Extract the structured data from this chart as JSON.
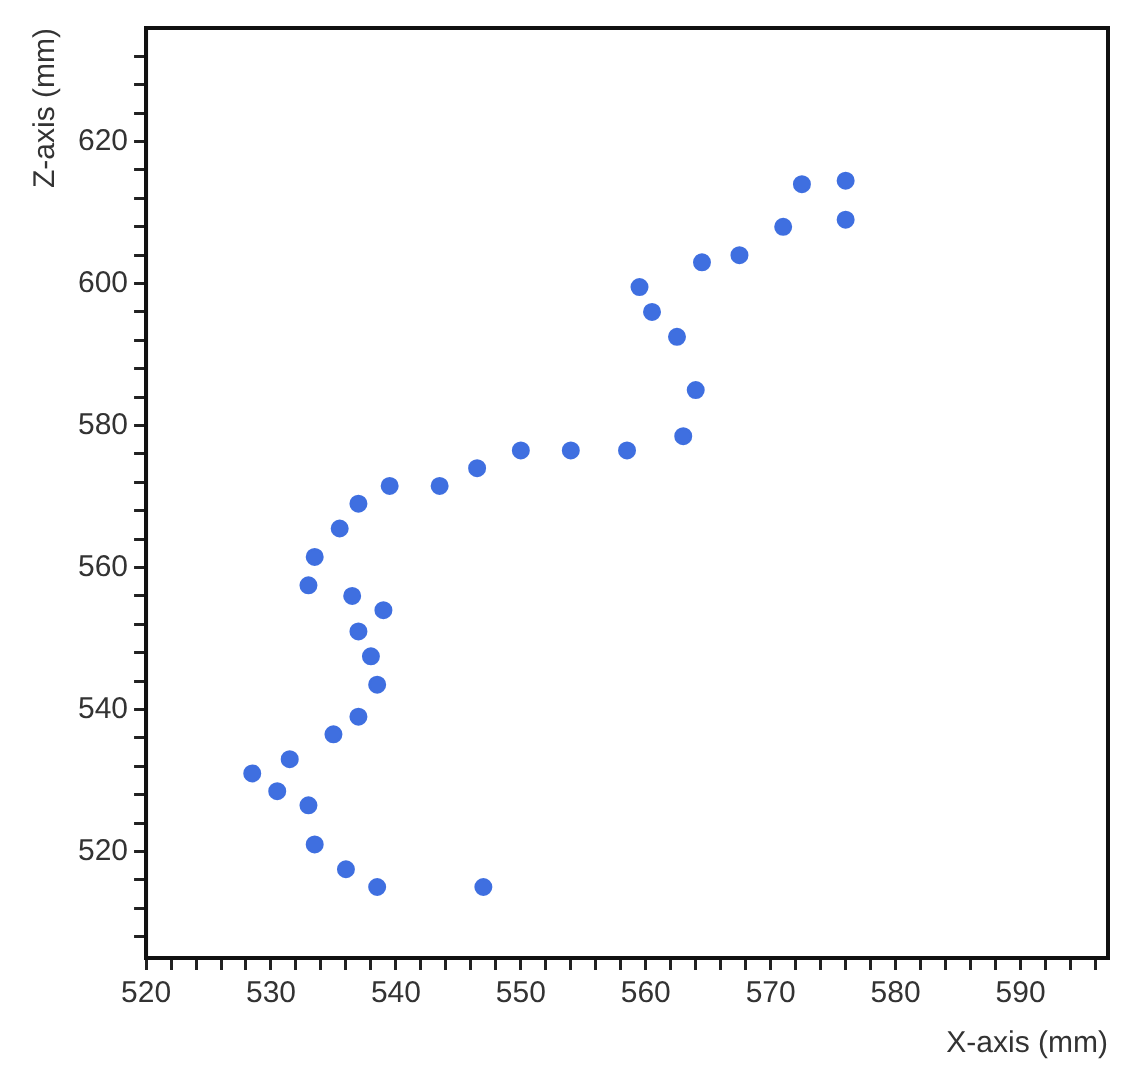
{
  "chart_data": {
    "type": "scatter",
    "xlabel": "X-axis (mm)",
    "ylabel": "Z-axis (mm)",
    "marker": "circle",
    "grid": false,
    "legend": false,
    "xlim": [
      520,
      597
    ],
    "ylim": [
      505,
      636
    ],
    "xticks": [
      520,
      {
        "value": 522,
        "label": null
      },
      {
        "value": 524,
        "label": null
      },
      {
        "value": 526,
        "label": null
      },
      {
        "value": 528,
        "label": null
      },
      530,
      {
        "value": 532,
        "label": null
      },
      {
        "value": 534,
        "label": null
      },
      {
        "value": 536,
        "label": null
      },
      {
        "value": 538,
        "label": null
      },
      540,
      {
        "value": 542,
        "label": null
      },
      {
        "value": 544,
        "label": null
      },
      {
        "value": 546,
        "label": null
      },
      {
        "value": 548,
        "label": null
      },
      550,
      {
        "value": 552,
        "label": null
      },
      {
        "value": 554,
        "label": null
      },
      {
        "value": 556,
        "label": null
      },
      {
        "value": 558,
        "label": null
      },
      560,
      {
        "value": 562,
        "label": null
      },
      {
        "value": 564,
        "label": null
      },
      {
        "value": 566,
        "label": null
      },
      {
        "value": 568,
        "label": null
      },
      570,
      {
        "value": 572,
        "label": null
      },
      {
        "value": 574,
        "label": null
      },
      {
        "value": 576,
        "label": null
      },
      {
        "value": 578,
        "label": null
      },
      580,
      {
        "value": 582,
        "label": null
      },
      {
        "value": 584,
        "label": null
      },
      {
        "value": 586,
        "label": null
      },
      {
        "value": 588,
        "label": null
      },
      590,
      {
        "value": 592,
        "label": null
      },
      {
        "value": 594,
        "label": null
      },
      {
        "value": 596,
        "label": null
      }
    ],
    "yticks": [
      {
        "value": 508,
        "label": null
      },
      {
        "value": 512,
        "label": null
      },
      {
        "value": 516,
        "label": null
      },
      520,
      {
        "value": 524,
        "label": null
      },
      {
        "value": 528,
        "label": null
      },
      {
        "value": 532,
        "label": null
      },
      {
        "value": 536,
        "label": null
      },
      540,
      {
        "value": 544,
        "label": null
      },
      {
        "value": 548,
        "label": null
      },
      {
        "value": 552,
        "label": null
      },
      {
        "value": 556,
        "label": null
      },
      560,
      {
        "value": 564,
        "label": null
      },
      {
        "value": 568,
        "label": null
      },
      {
        "value": 572,
        "label": null
      },
      {
        "value": 576,
        "label": null
      },
      580,
      {
        "value": 584,
        "label": null
      },
      {
        "value": 588,
        "label": null
      },
      {
        "value": 592,
        "label": null
      },
      {
        "value": 596,
        "label": null
      },
      600,
      {
        "value": 604,
        "label": null
      },
      {
        "value": 608,
        "label": null
      },
      {
        "value": 612,
        "label": null
      },
      {
        "value": 616,
        "label": null
      },
      620,
      {
        "value": 624,
        "label": null
      },
      {
        "value": 628,
        "label": null
      },
      {
        "value": 632,
        "label": null
      }
    ],
    "series": [
      {
        "color": "#3f6fe0",
        "x": [
          538.5,
          536,
          533.5,
          533,
          530.5,
          528.5,
          531.5,
          535,
          537,
          538.5,
          538,
          537,
          539,
          536.5,
          533,
          533.5,
          535.5,
          537,
          539.5,
          543.5,
          546.5,
          550,
          554,
          558.5,
          563,
          564,
          562.5,
          560.5,
          559.5,
          564.5,
          567.5,
          571,
          572.5,
          576,
          576,
          547
        ],
        "values": [
          515,
          517.5,
          521,
          526.5,
          528.5,
          531,
          533,
          536.5,
          539,
          543.5,
          547.5,
          551,
          554,
          556,
          557.5,
          561.5,
          565.5,
          569,
          571.5,
          571.5,
          574,
          576.5,
          576.5,
          576.5,
          578.5,
          585,
          592.5,
          596,
          599.5,
          603,
          604,
          608,
          614,
          614.5,
          609,
          515
        ]
      }
    ]
  }
}
